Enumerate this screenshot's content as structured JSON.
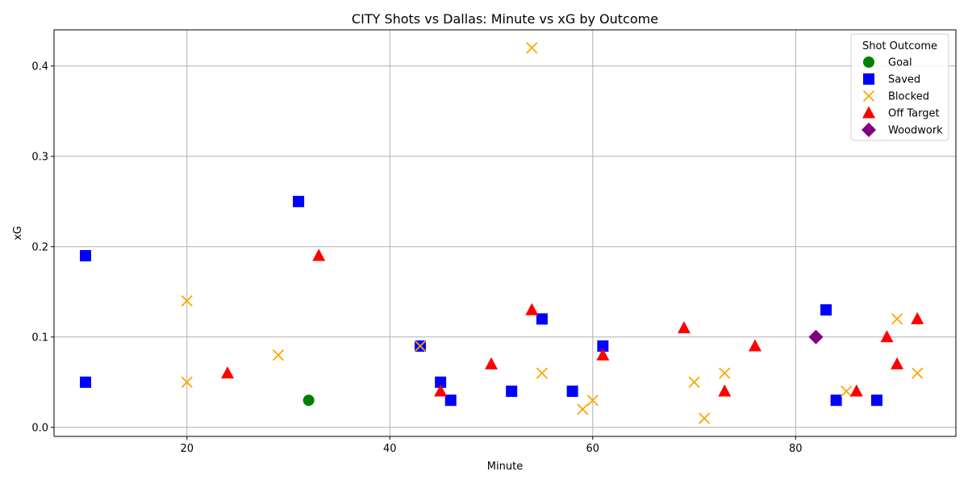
{
  "chart_data": {
    "type": "scatter",
    "title": "CITY Shots vs Dallas: Minute vs xG by Outcome",
    "xlabel": "Minute",
    "ylabel": "xG",
    "xlim": [
      6.9,
      95.8
    ],
    "ylim": [
      -0.01,
      0.44
    ],
    "xticks": [
      20,
      40,
      60,
      80
    ],
    "yticks": [
      0.0,
      0.1,
      0.2,
      0.3,
      0.4
    ],
    "ytick_labels": [
      "0.0",
      "0.1",
      "0.2",
      "0.3",
      "0.4"
    ],
    "grid": true,
    "legend": {
      "title": "Shot Outcome",
      "placement": "top-right"
    },
    "series": [
      {
        "name": "Goal",
        "marker": "circle",
        "color": "#008000",
        "points": [
          [
            32,
            0.03
          ]
        ]
      },
      {
        "name": "Saved",
        "marker": "square",
        "color": "#0000ff",
        "points": [
          [
            10,
            0.19
          ],
          [
            10,
            0.05
          ],
          [
            31,
            0.25
          ],
          [
            43,
            0.09
          ],
          [
            45,
            0.05
          ],
          [
            46,
            0.03
          ],
          [
            52,
            0.04
          ],
          [
            55,
            0.12
          ],
          [
            58,
            0.04
          ],
          [
            61,
            0.09
          ],
          [
            83,
            0.13
          ],
          [
            84,
            0.03
          ],
          [
            88,
            0.03
          ]
        ]
      },
      {
        "name": "Blocked",
        "marker": "x",
        "color": "#ffa500",
        "points": [
          [
            20,
            0.14
          ],
          [
            20,
            0.05
          ],
          [
            29,
            0.08
          ],
          [
            43,
            0.09
          ],
          [
            54,
            0.42
          ],
          [
            55,
            0.06
          ],
          [
            59,
            0.02
          ],
          [
            60,
            0.03
          ],
          [
            70,
            0.05
          ],
          [
            71,
            0.01
          ],
          [
            73,
            0.06
          ],
          [
            85,
            0.04
          ],
          [
            90,
            0.12
          ],
          [
            92,
            0.06
          ]
        ]
      },
      {
        "name": "Off Target",
        "marker": "triangle",
        "color": "#ff0000",
        "points": [
          [
            24,
            0.06
          ],
          [
            33,
            0.19
          ],
          [
            45,
            0.04
          ],
          [
            50,
            0.07
          ],
          [
            54,
            0.13
          ],
          [
            61,
            0.08
          ],
          [
            69,
            0.11
          ],
          [
            73,
            0.04
          ],
          [
            76,
            0.09
          ],
          [
            86,
            0.04
          ],
          [
            89,
            0.1
          ],
          [
            90,
            0.07
          ],
          [
            92,
            0.12
          ]
        ]
      },
      {
        "name": "Woodwork",
        "marker": "diamond",
        "color": "#800080",
        "points": [
          [
            82,
            0.1
          ]
        ]
      }
    ]
  }
}
